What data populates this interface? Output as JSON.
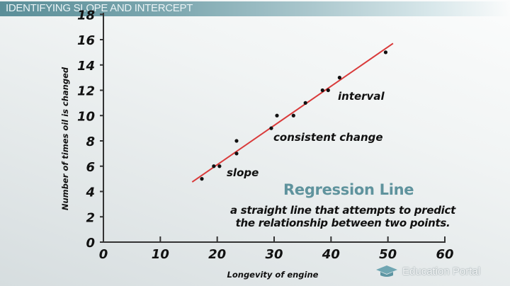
{
  "header": {
    "title": "IDENTIFYING SLOPE AND INTERCEPT"
  },
  "annotations": {
    "slope": "slope",
    "consistent_change": "consistent change",
    "interval": "interval",
    "regression_title": "Regression Line",
    "regression_definition_line1": "a straight line that attempts to predict",
    "regression_definition_line2": "the relationship between two points."
  },
  "branding": {
    "icon": "graduation-cap-icon",
    "text": "Education Portal"
  },
  "colors": {
    "header": "#5a8e98",
    "regression_line": "#d93a3a",
    "points": "#111111",
    "title_accent": "#5f939d"
  },
  "chart_data": {
    "type": "scatter",
    "title": "",
    "xlabel": "Longevity of engine",
    "ylabel": "Number of times oil is changed",
    "xlim": [
      0,
      60
    ],
    "ylim": [
      0,
      18
    ],
    "x_ticks": [
      "0",
      "10",
      "20",
      "30",
      "40",
      "50",
      "60"
    ],
    "y_ticks": [
      "0",
      "2",
      "4",
      "6",
      "8",
      "10",
      "12",
      "14",
      "16",
      "18"
    ],
    "grid": false,
    "series": [
      {
        "name": "observations",
        "points": [
          [
            17.3,
            5
          ],
          [
            19.4,
            6
          ],
          [
            20.4,
            6
          ],
          [
            23.4,
            7
          ],
          [
            23.4,
            8
          ],
          [
            29.5,
            9
          ],
          [
            30.5,
            10
          ],
          [
            33.4,
            10
          ],
          [
            35.5,
            11
          ],
          [
            38.5,
            12
          ],
          [
            39.5,
            12
          ],
          [
            41.5,
            13
          ],
          [
            49.6,
            15
          ]
        ]
      }
    ],
    "regression_line": {
      "name": "Regression Line",
      "start": [
        15.6,
        4.75
      ],
      "end": [
        50.9,
        15.7
      ],
      "color": "#d93a3a"
    },
    "annotations": [
      "slope",
      "consistent change",
      "interval"
    ]
  }
}
